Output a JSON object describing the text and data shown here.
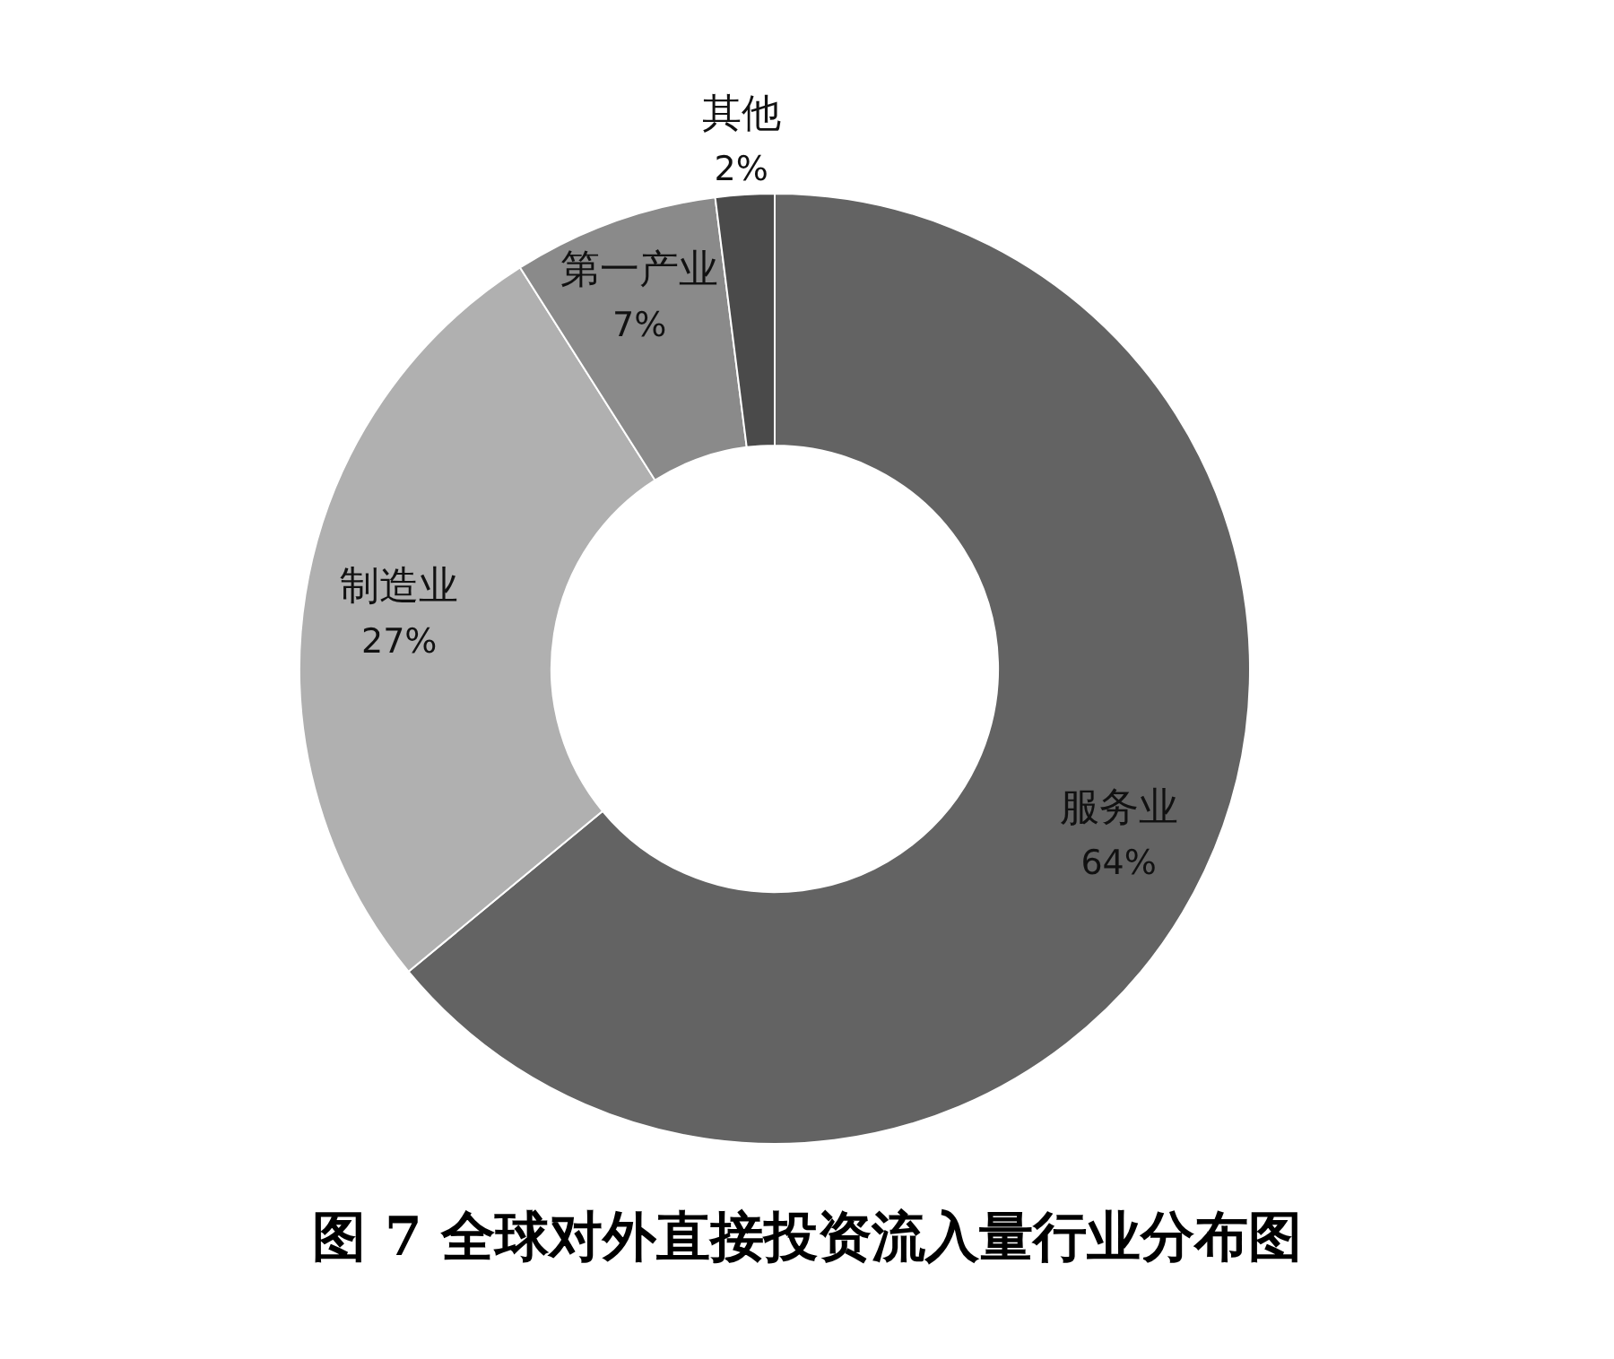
{
  "chart_data": {
    "type": "donut",
    "title": "图 7 全球对外直接投资流入量行业分布图",
    "categories": [
      "服务业",
      "制造业",
      "第一产业",
      "其他"
    ],
    "values": [
      64,
      27,
      7,
      2
    ],
    "value_labels": [
      "64%",
      "27%",
      "7%",
      "2%"
    ],
    "colors": [
      "#636363",
      "#b0b0b0",
      "#8a8a8a",
      "#4a4a4a"
    ]
  }
}
